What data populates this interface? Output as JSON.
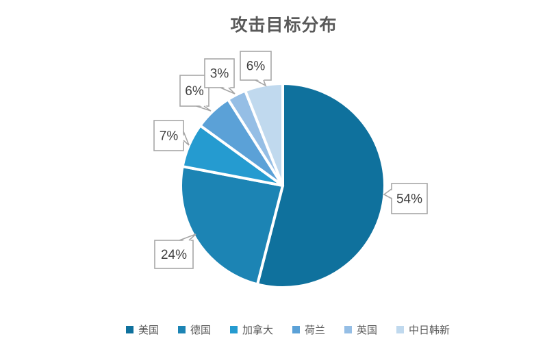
{
  "chart_data": {
    "type": "pie",
    "title": "攻击目标分布",
    "categories": [
      "美国",
      "德国",
      "加拿大",
      "荷兰",
      "英国",
      "中日韩新"
    ],
    "values": [
      54,
      24,
      7,
      6,
      3,
      6
    ],
    "data_labels": [
      "54%",
      "24%",
      "7%",
      "6%",
      "3%",
      "6%"
    ],
    "colors": [
      "#0f719d",
      "#1c84b4",
      "#259bd0",
      "#5ba1d7",
      "#95bee5",
      "#c0d9ee"
    ],
    "legend_position": "bottom",
    "label_style": "callout",
    "styles": {
      "background": "#ffffff",
      "title_color": "#595959",
      "legend_text_color": "#595959",
      "data_label_color": "#404040",
      "callout_border_color": "#a6a6a6",
      "callout_fill": "#ffffff",
      "slice_gap_color": "#ffffff"
    }
  }
}
